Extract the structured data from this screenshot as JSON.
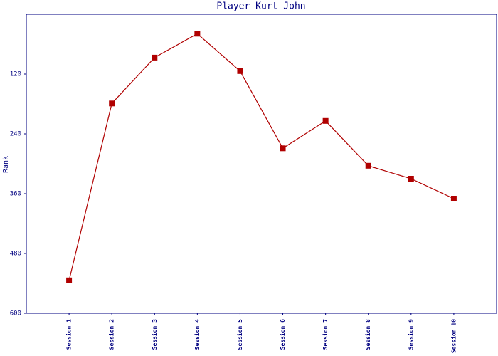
{
  "chart_data": {
    "type": "line",
    "title": "Player Kurt John",
    "y_label": "Rank",
    "categories": [
      "Session 1",
      "Session 2",
      "Session 3",
      "Session 4",
      "Session 5",
      "Session 6",
      "Session 7",
      "Session 8",
      "Session 9",
      "Session 10"
    ],
    "series": [
      {
        "name": "Rank",
        "color": "#b00000",
        "values": [
          534,
          179,
          87,
          39,
          114,
          269,
          214,
          304,
          330,
          370
        ]
      }
    ],
    "ylim": [
      0,
      600
    ],
    "y_inverted": true,
    "yticks": [
      120,
      240,
      360,
      480,
      600
    ],
    "grid": false
  }
}
